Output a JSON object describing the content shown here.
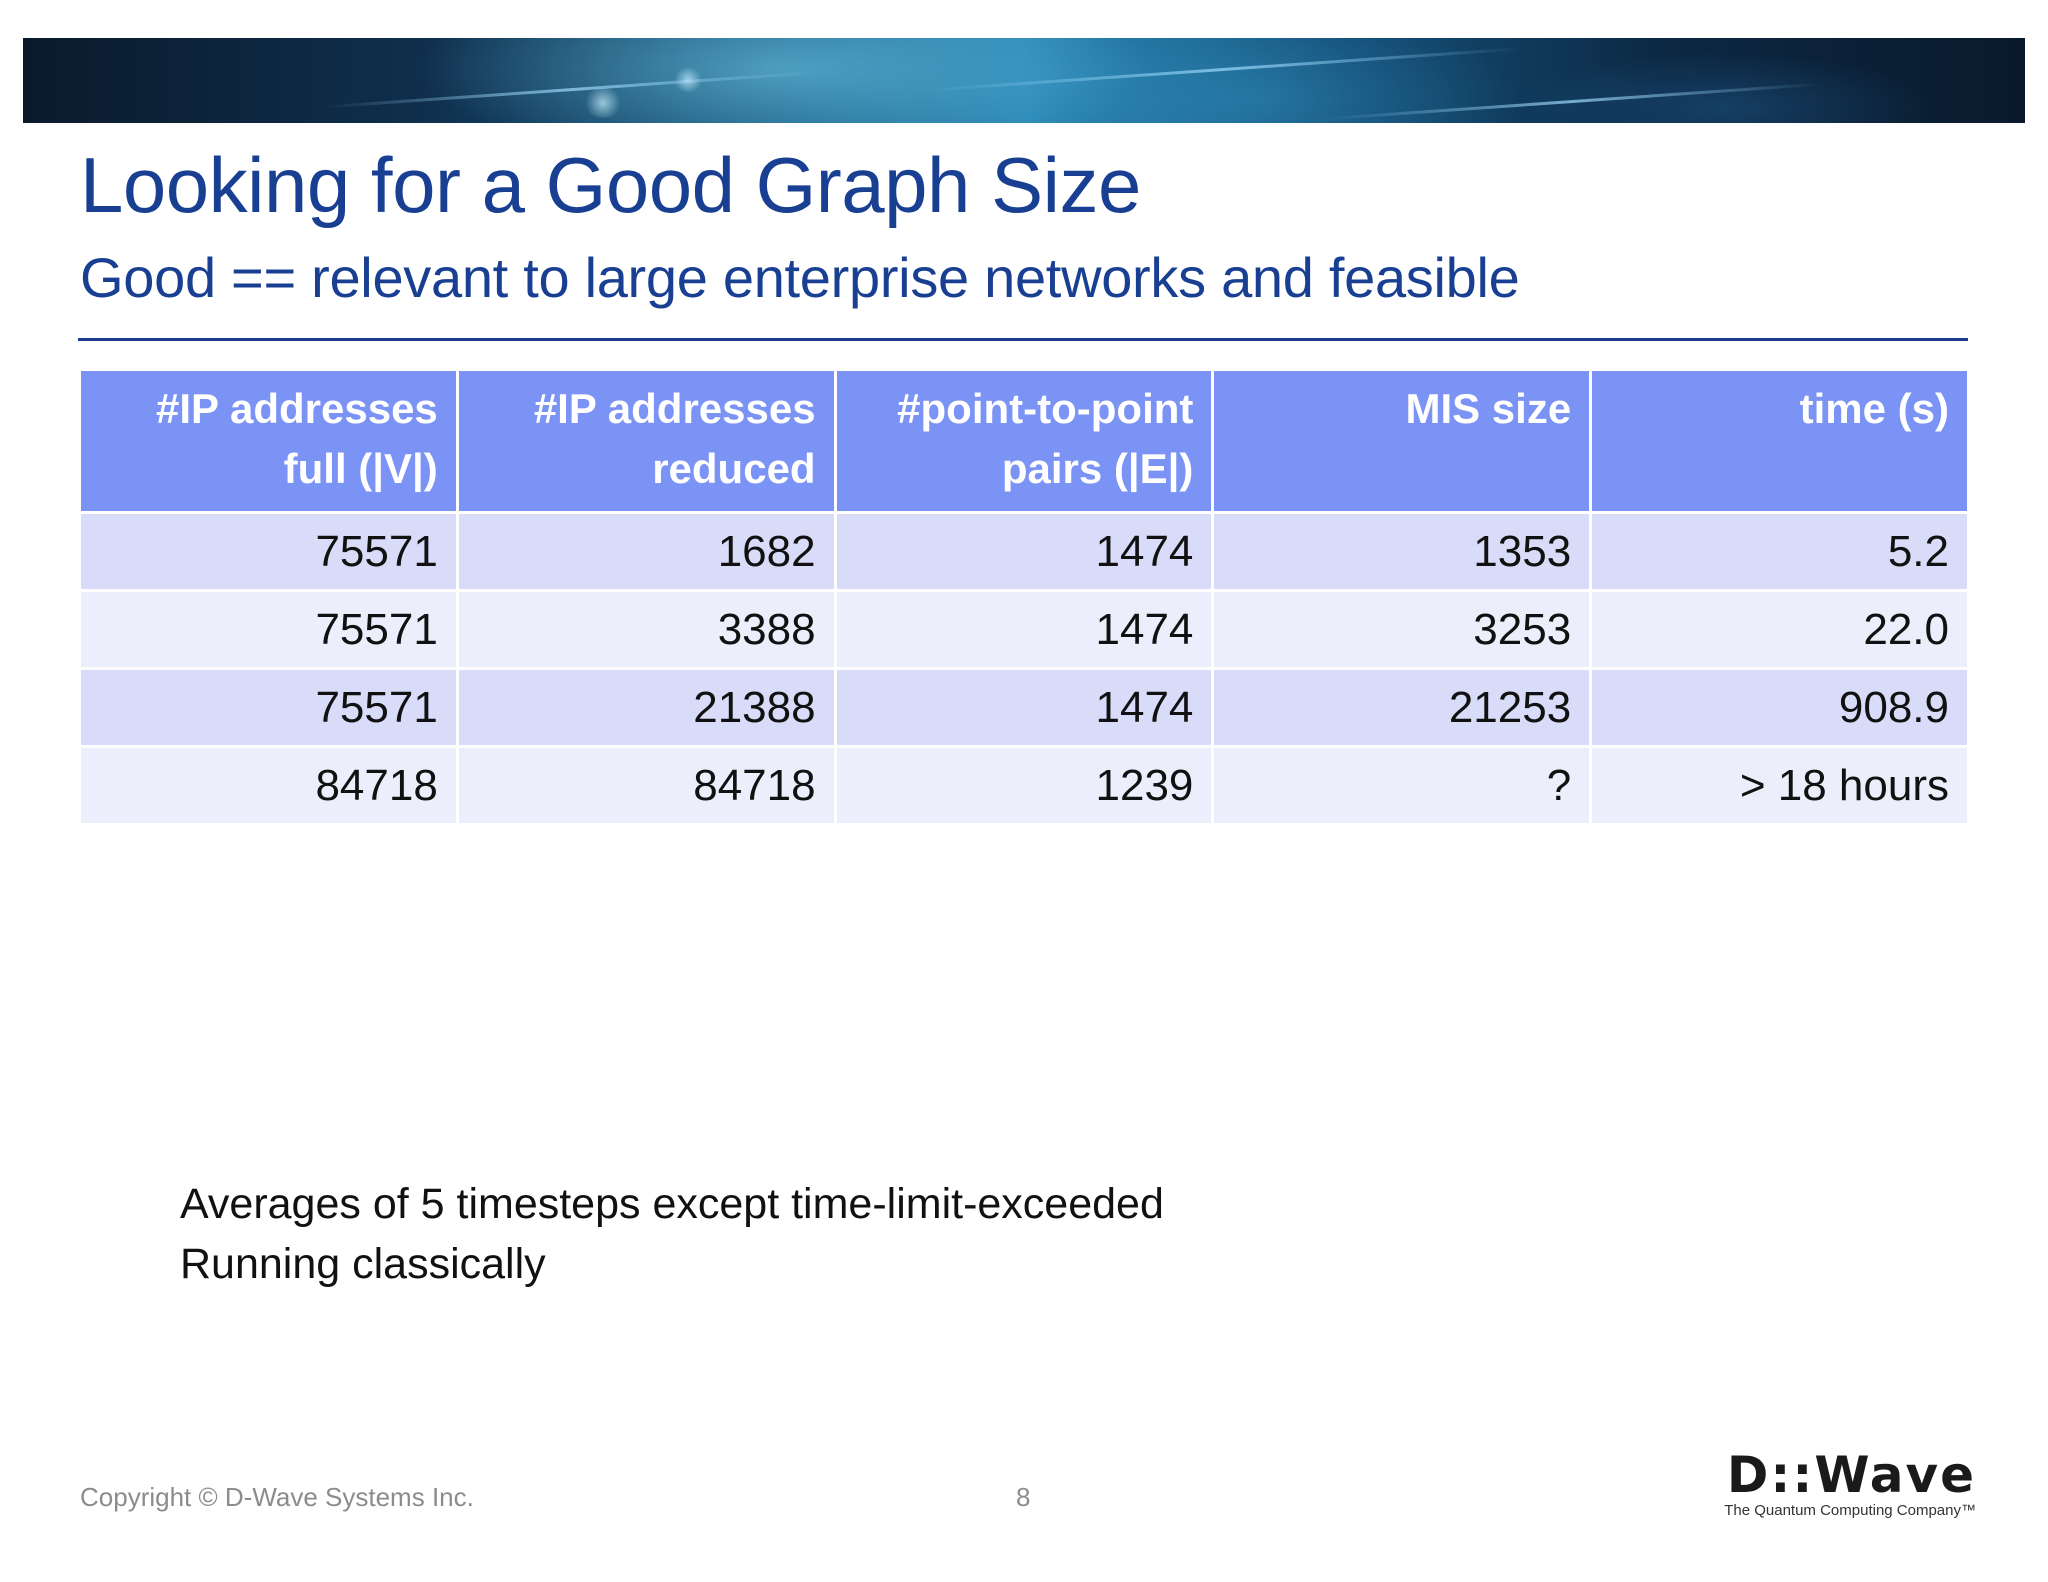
{
  "slide": {
    "title": "Looking for a Good Graph Size",
    "subtitle": "Good == relevant to large enterprise networks and feasible"
  },
  "table": {
    "headers": [
      {
        "line1": "#IP addresses",
        "line2": "full (|V|)"
      },
      {
        "line1": "#IP addresses",
        "line2": "reduced"
      },
      {
        "line1": "#point-to-point",
        "line2": "pairs (|E|)"
      },
      {
        "line1": "MIS size",
        "line2": ""
      },
      {
        "line1": "time (s)",
        "line2": ""
      }
    ],
    "rows": [
      [
        "75571",
        "1682",
        "1474",
        "1353",
        "5.2"
      ],
      [
        "75571",
        "3388",
        "1474",
        "3253",
        "22.0"
      ],
      [
        "75571",
        "21388",
        "1474",
        "21253",
        "908.9"
      ],
      [
        "84718",
        "84718",
        "1239",
        "?",
        "> 18 hours"
      ]
    ]
  },
  "notes": [
    "Averages of 5 timesteps except time-limit-exceeded",
    "Running classically"
  ],
  "footer": {
    "copyright": "Copyright © D-Wave Systems Inc.",
    "page_number": "8",
    "logo_text": "D::Wave",
    "logo_tagline": "The Quantum Computing Company™"
  },
  "colors": {
    "title": "#183f91",
    "header_bg": "#7a93f5",
    "row_odd": "#d9dcf8",
    "row_even": "#eceefb"
  }
}
